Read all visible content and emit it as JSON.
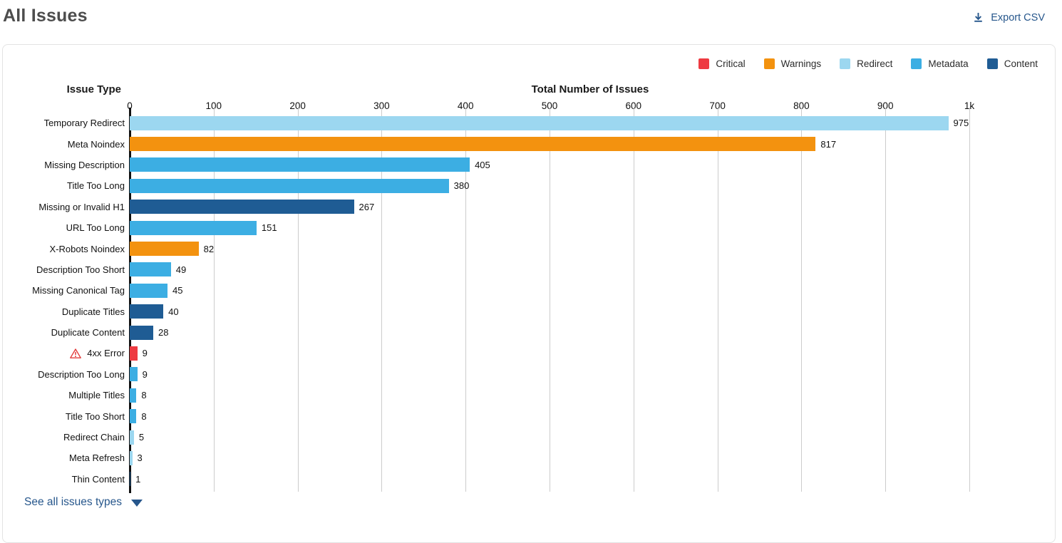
{
  "header": {
    "title": "All Issues",
    "export_label": "Export CSV"
  },
  "legend": {
    "items": [
      {
        "key": "critical",
        "label": "Critical",
        "color": "#ee3a41"
      },
      {
        "key": "warnings",
        "label": "Warnings",
        "color": "#f3920f"
      },
      {
        "key": "redirect",
        "label": "Redirect",
        "color": "#9cd7f0"
      },
      {
        "key": "metadata",
        "label": "Metadata",
        "color": "#3caee3"
      },
      {
        "key": "content",
        "label": "Content",
        "color": "#1f5c94"
      }
    ]
  },
  "chart_data": {
    "type": "bar",
    "orientation": "horizontal",
    "xlabel": "Total Number of Issues",
    "ylabel": "Issue Type",
    "xlim": [
      0,
      1000
    ],
    "grid": true,
    "legend_position": "top-right",
    "xticks": [
      {
        "value": 0,
        "label": "0"
      },
      {
        "value": 100,
        "label": "100"
      },
      {
        "value": 200,
        "label": "200"
      },
      {
        "value": 300,
        "label": "300"
      },
      {
        "value": 400,
        "label": "400"
      },
      {
        "value": 500,
        "label": "500"
      },
      {
        "value": 600,
        "label": "600"
      },
      {
        "value": 700,
        "label": "700"
      },
      {
        "value": 800,
        "label": "800"
      },
      {
        "value": 900,
        "label": "900"
      },
      {
        "value": 1000,
        "label": "1k"
      }
    ],
    "rows": [
      {
        "label": "Temporary Redirect",
        "value": 975,
        "category": "redirect"
      },
      {
        "label": "Meta Noindex",
        "value": 817,
        "category": "warnings"
      },
      {
        "label": "Missing Description",
        "value": 405,
        "category": "metadata"
      },
      {
        "label": "Title Too Long",
        "value": 380,
        "category": "metadata"
      },
      {
        "label": "Missing or Invalid H1",
        "value": 267,
        "category": "content"
      },
      {
        "label": "URL Too Long",
        "value": 151,
        "category": "metadata"
      },
      {
        "label": "X-Robots Noindex",
        "value": 82,
        "category": "warnings"
      },
      {
        "label": "Description Too Short",
        "value": 49,
        "category": "metadata"
      },
      {
        "label": "Missing Canonical Tag",
        "value": 45,
        "category": "metadata"
      },
      {
        "label": "Duplicate Titles",
        "value": 40,
        "category": "content"
      },
      {
        "label": "Duplicate Content",
        "value": 28,
        "category": "content"
      },
      {
        "label": "4xx Error",
        "value": 9,
        "category": "critical",
        "warning_icon": true
      },
      {
        "label": "Description Too Long",
        "value": 9,
        "category": "metadata"
      },
      {
        "label": "Multiple Titles",
        "value": 8,
        "category": "metadata"
      },
      {
        "label": "Title Too Short",
        "value": 8,
        "category": "metadata"
      },
      {
        "label": "Redirect Chain",
        "value": 5,
        "category": "redirect"
      },
      {
        "label": "Meta Refresh",
        "value": 3,
        "category": "redirect"
      },
      {
        "label": "Thin Content",
        "value": 1,
        "category": "content"
      }
    ]
  },
  "footer": {
    "see_all_label": "See all issues types"
  }
}
